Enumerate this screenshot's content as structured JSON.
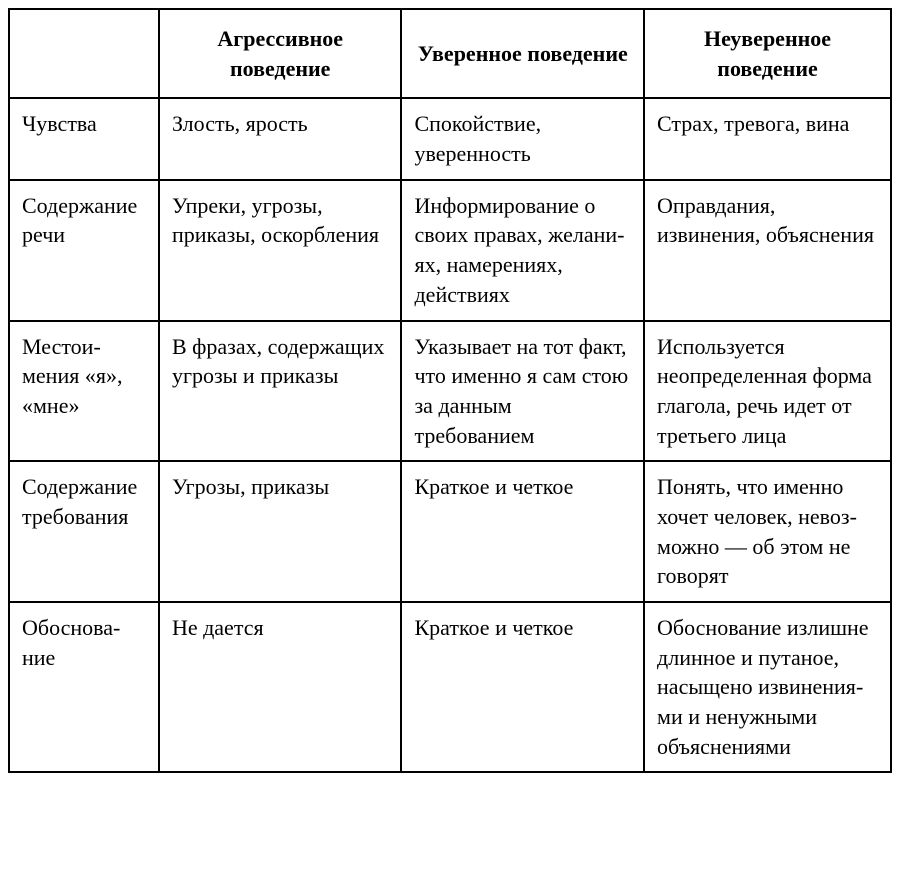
{
  "table": {
    "columns": [
      "",
      "Агрессивное поведение",
      "Уверенное поведение",
      "Неуверенное поведение"
    ],
    "rows": [
      {
        "label": "Чувства",
        "cells": [
          "Злость, ярость",
          "Спокойствие, уверенность",
          "Страх, тревога, вина"
        ]
      },
      {
        "label": "Содержа­ние речи",
        "cells": [
          "Упреки, угрозы, приказы, оскорб­ления",
          "Информиро­вание о своих правах, желани­ях, намерениях, действиях",
          "Оправдания, извинения, объ­яснения"
        ]
      },
      {
        "label": "Местои­мения «я», «мне»",
        "cells": [
          "В фразах, содер­жащих угрозы и приказы",
          "Указывает на тот факт, что именно я сам стою за дан­ным требованием",
          "Используется неопределенная форма глагола, речь идет от третьего лица"
        ]
      },
      {
        "label": "Содержа­ние требо­вания",
        "cells": [
          "Угрозы, приказы",
          "Краткое и четкое",
          "Понять, что именно хочет человек, невоз­можно — об этом не говорят"
        ]
      },
      {
        "label": "Обоснова­ние",
        "cells": [
          "Не дается",
          "Краткое и четкое",
          "Обоснование из­лишне длинное и путаное, насы­щено извинения­ми и ненужными объяснениями"
        ]
      }
    ],
    "border_color": "#000000",
    "background_color": "#ffffff",
    "text_color": "#000000",
    "header_fontweight": "bold",
    "font_family": "serif",
    "cell_fontsize": 22
  }
}
